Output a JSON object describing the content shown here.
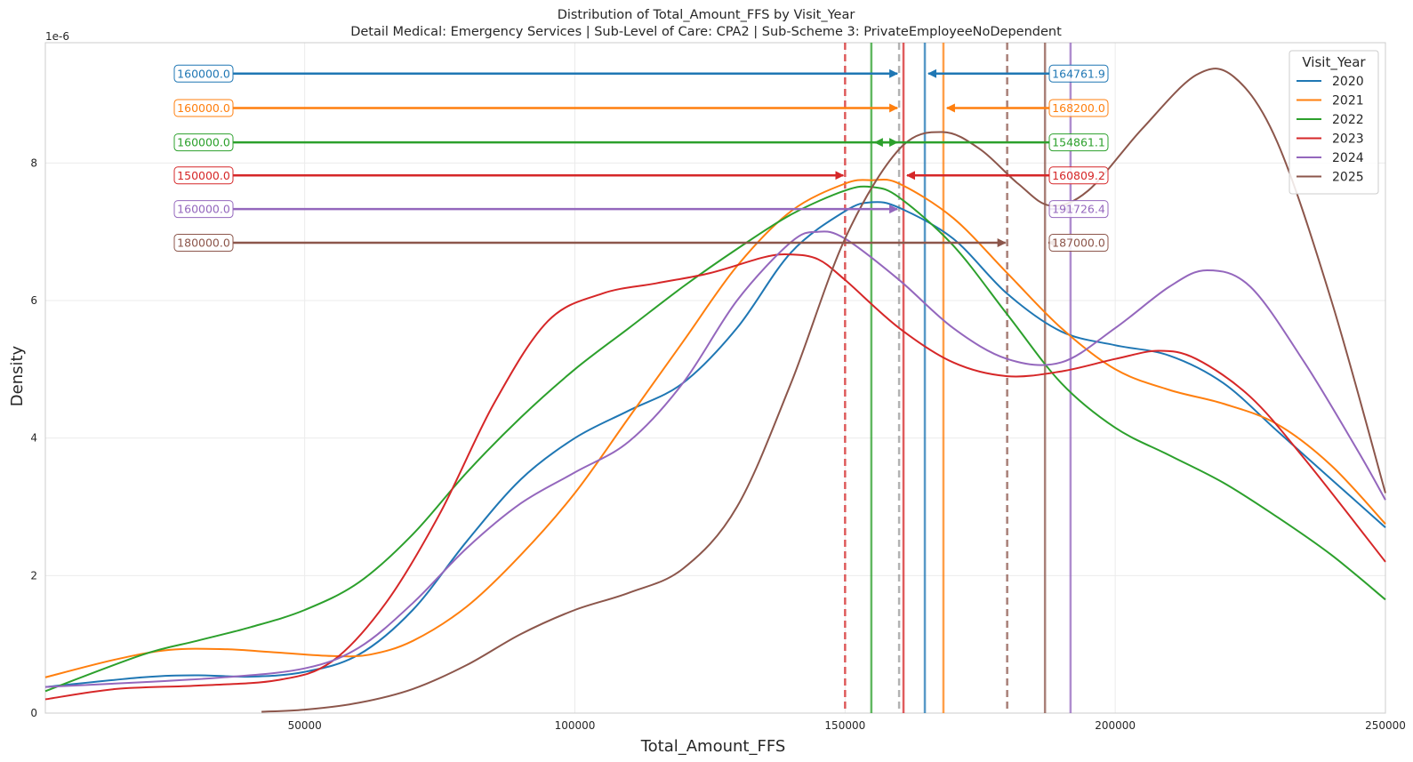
{
  "chart_data": {
    "type": "line",
    "title": "Distribution of Total_Amount_FFS by Visit_Year",
    "subtitle": "Detail Medical: Emergency Services | Sub-Level of Care: CPA2 | Sub-Scheme 3: PrivateEmployeeNoDependent",
    "xlabel": "Total_Amount_FFS",
    "ylabel": "Density",
    "y_offset_text": "1e-6",
    "xlim": [
      2000,
      250000
    ],
    "ylim": [
      0,
      9.75
    ],
    "x_ticks": [
      50000,
      100000,
      150000,
      200000,
      250000
    ],
    "y_ticks": [
      0,
      2,
      4,
      6,
      8
    ],
    "grid": true,
    "legend": {
      "title": "Visit_Year",
      "placement": "top-right"
    },
    "series": [
      {
        "name": "2020",
        "color": "#1f77b4",
        "points": [
          [
            2000,
            0.38
          ],
          [
            20000,
            0.52
          ],
          [
            30000,
            0.55
          ],
          [
            40000,
            0.53
          ],
          [
            50000,
            0.6
          ],
          [
            60000,
            0.85
          ],
          [
            70000,
            1.5
          ],
          [
            80000,
            2.5
          ],
          [
            90000,
            3.4
          ],
          [
            100000,
            4.0
          ],
          [
            110000,
            4.4
          ],
          [
            120000,
            4.8
          ],
          [
            130000,
            5.6
          ],
          [
            140000,
            6.7
          ],
          [
            150000,
            7.3
          ],
          [
            155000,
            7.43
          ],
          [
            160000,
            7.35
          ],
          [
            170000,
            6.9
          ],
          [
            180000,
            6.1
          ],
          [
            190000,
            5.55
          ],
          [
            200000,
            5.35
          ],
          [
            210000,
            5.2
          ],
          [
            220000,
            4.8
          ],
          [
            230000,
            4.1
          ],
          [
            240000,
            3.4
          ],
          [
            250000,
            2.7
          ]
        ],
        "median": 160000.0,
        "mean": 164761.9
      },
      {
        "name": "2021",
        "color": "#ff7f0e",
        "points": [
          [
            2000,
            0.52
          ],
          [
            15000,
            0.78
          ],
          [
            25000,
            0.92
          ],
          [
            35000,
            0.93
          ],
          [
            45000,
            0.88
          ],
          [
            55000,
            0.83
          ],
          [
            62000,
            0.85
          ],
          [
            70000,
            1.05
          ],
          [
            80000,
            1.55
          ],
          [
            90000,
            2.3
          ],
          [
            100000,
            3.2
          ],
          [
            110000,
            4.3
          ],
          [
            120000,
            5.4
          ],
          [
            130000,
            6.5
          ],
          [
            140000,
            7.3
          ],
          [
            150000,
            7.7
          ],
          [
            155000,
            7.75
          ],
          [
            160000,
            7.7
          ],
          [
            170000,
            7.2
          ],
          [
            180000,
            6.4
          ],
          [
            190000,
            5.6
          ],
          [
            200000,
            5.0
          ],
          [
            210000,
            4.7
          ],
          [
            220000,
            4.5
          ],
          [
            230000,
            4.2
          ],
          [
            240000,
            3.6
          ],
          [
            250000,
            2.75
          ]
        ],
        "median": 160000.0,
        "mean": 168200.0
      },
      {
        "name": "2022",
        "color": "#2ca02c",
        "points": [
          [
            2000,
            0.32
          ],
          [
            20000,
            0.85
          ],
          [
            30000,
            1.05
          ],
          [
            40000,
            1.25
          ],
          [
            50000,
            1.5
          ],
          [
            60000,
            1.9
          ],
          [
            70000,
            2.6
          ],
          [
            80000,
            3.5
          ],
          [
            90000,
            4.3
          ],
          [
            100000,
            5.0
          ],
          [
            110000,
            5.6
          ],
          [
            120000,
            6.2
          ],
          [
            130000,
            6.75
          ],
          [
            140000,
            7.25
          ],
          [
            150000,
            7.6
          ],
          [
            155000,
            7.65
          ],
          [
            160000,
            7.5
          ],
          [
            170000,
            6.8
          ],
          [
            180000,
            5.8
          ],
          [
            190000,
            4.8
          ],
          [
            200000,
            4.15
          ],
          [
            210000,
            3.75
          ],
          [
            220000,
            3.35
          ],
          [
            230000,
            2.85
          ],
          [
            240000,
            2.3
          ],
          [
            250000,
            1.65
          ]
        ],
        "median": 160000.0,
        "mean": 154861.1
      },
      {
        "name": "2023",
        "color": "#d62728",
        "points": [
          [
            2000,
            0.2
          ],
          [
            15000,
            0.35
          ],
          [
            30000,
            0.4
          ],
          [
            45000,
            0.48
          ],
          [
            55000,
            0.75
          ],
          [
            65000,
            1.6
          ],
          [
            75000,
            2.9
          ],
          [
            85000,
            4.5
          ],
          [
            95000,
            5.7
          ],
          [
            105000,
            6.1
          ],
          [
            115000,
            6.25
          ],
          [
            125000,
            6.4
          ],
          [
            135000,
            6.63
          ],
          [
            140000,
            6.67
          ],
          [
            145000,
            6.6
          ],
          [
            150000,
            6.3
          ],
          [
            160000,
            5.6
          ],
          [
            170000,
            5.1
          ],
          [
            180000,
            4.9
          ],
          [
            190000,
            4.97
          ],
          [
            200000,
            5.15
          ],
          [
            208000,
            5.27
          ],
          [
            215000,
            5.15
          ],
          [
            225000,
            4.6
          ],
          [
            235000,
            3.7
          ],
          [
            250000,
            2.2
          ]
        ],
        "median": 150000.0,
        "mean": 160809.2
      },
      {
        "name": "2024",
        "color": "#9467bd",
        "points": [
          [
            2000,
            0.38
          ],
          [
            20000,
            0.45
          ],
          [
            35000,
            0.52
          ],
          [
            50000,
            0.65
          ],
          [
            60000,
            0.95
          ],
          [
            70000,
            1.6
          ],
          [
            80000,
            2.4
          ],
          [
            90000,
            3.05
          ],
          [
            100000,
            3.5
          ],
          [
            110000,
            3.95
          ],
          [
            120000,
            4.8
          ],
          [
            130000,
            6.0
          ],
          [
            140000,
            6.85
          ],
          [
            145000,
            7.0
          ],
          [
            150000,
            6.9
          ],
          [
            160000,
            6.3
          ],
          [
            170000,
            5.6
          ],
          [
            180000,
            5.15
          ],
          [
            190000,
            5.1
          ],
          [
            200000,
            5.6
          ],
          [
            210000,
            6.2
          ],
          [
            217000,
            6.44
          ],
          [
            225000,
            6.2
          ],
          [
            235000,
            5.1
          ],
          [
            245000,
            3.8
          ],
          [
            250000,
            3.1
          ]
        ],
        "median": 160000.0,
        "mean": 191726.4
      },
      {
        "name": "2025",
        "color": "#8c564b",
        "points": [
          [
            42000,
            0.02
          ],
          [
            50000,
            0.05
          ],
          [
            60000,
            0.15
          ],
          [
            70000,
            0.35
          ],
          [
            80000,
            0.7
          ],
          [
            90000,
            1.15
          ],
          [
            100000,
            1.5
          ],
          [
            110000,
            1.75
          ],
          [
            120000,
            2.1
          ],
          [
            130000,
            3.0
          ],
          [
            140000,
            4.8
          ],
          [
            150000,
            6.9
          ],
          [
            160000,
            8.2
          ],
          [
            168000,
            8.45
          ],
          [
            175000,
            8.2
          ],
          [
            182000,
            7.7
          ],
          [
            188000,
            7.38
          ],
          [
            195000,
            7.6
          ],
          [
            205000,
            8.5
          ],
          [
            215000,
            9.28
          ],
          [
            222000,
            9.25
          ],
          [
            230000,
            8.3
          ],
          [
            240000,
            6.0
          ],
          [
            250000,
            3.2
          ]
        ],
        "median": 180000.0,
        "mean": 187000.0
      }
    ],
    "reference_lines": [
      {
        "series": "2020",
        "x": 160000,
        "style": "dashed",
        "color": "#999999"
      },
      {
        "series": "2020",
        "x": 164761.9,
        "style": "solid",
        "color": "#1f77b4"
      },
      {
        "series": "2021",
        "x": 168200,
        "style": "solid",
        "color": "#ff7f0e"
      },
      {
        "series": "2022",
        "x": 154861.1,
        "style": "solid",
        "color": "#2ca02c"
      },
      {
        "series": "2023",
        "x": 150000,
        "style": "dashed",
        "color": "#d62728"
      },
      {
        "series": "2023",
        "x": 160809.2,
        "style": "solid",
        "color": "#d62728"
      },
      {
        "series": "2024",
        "x": 191726.4,
        "style": "solid",
        "color": "#9467bd"
      },
      {
        "series": "2025",
        "x": 180000,
        "style": "dashed",
        "color": "#8c564b"
      },
      {
        "series": "2025",
        "x": 187000,
        "style": "solid",
        "color": "#8c564b"
      }
    ],
    "annotations": [
      {
        "series": "2020",
        "left_label": "160000.0",
        "right_label": "164761.9",
        "y": 9.3,
        "color": "#1f77b4",
        "left_to": 160000,
        "right_to": 164761.9
      },
      {
        "series": "2021",
        "left_label": "160000.0",
        "right_label": "168200.0",
        "y": 8.8,
        "color": "#ff7f0e",
        "left_to": 160000,
        "right_to": 168200
      },
      {
        "series": "2022",
        "left_label": "160000.0",
        "right_label": "154861.1",
        "y": 8.3,
        "color": "#2ca02c",
        "left_to": 160000,
        "right_to": 154861.1
      },
      {
        "series": "2023",
        "left_label": "150000.0",
        "right_label": "160809.2",
        "y": 7.82,
        "color": "#d62728",
        "left_to": 150000,
        "right_to": 160809.2
      },
      {
        "series": "2024",
        "left_label": "160000.0",
        "right_label": "191726.4",
        "y": 7.33,
        "color": "#9467bd",
        "left_to": 160000,
        "right_to": 191726.4
      },
      {
        "series": "2025",
        "left_label": "180000.0",
        "right_label": "187000.0",
        "y": 6.84,
        "color": "#8c564b",
        "left_to": 180000,
        "right_to": 187000
      }
    ]
  }
}
